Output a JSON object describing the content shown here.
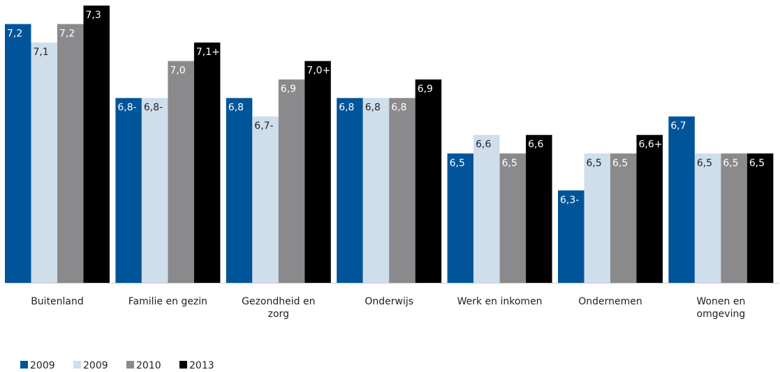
{
  "chart_data": {
    "type": "bar",
    "title": "",
    "xlabel": "",
    "ylabel": "",
    "categories": [
      [
        "Buitenland"
      ],
      [
        "Familie en gezin"
      ],
      [
        "Gezondheid en",
        "zorg"
      ],
      [
        "Onderwijs"
      ],
      [
        "Werk en inkomen"
      ],
      [
        "Ondernemen"
      ],
      [
        "Wonen en",
        "omgeving"
      ]
    ],
    "series": [
      {
        "name": "2009",
        "color": "#00549a",
        "label_color": "#ffffff",
        "values": [
          7.2,
          6.8,
          6.8,
          6.8,
          6.5,
          6.3,
          6.7
        ],
        "labels": [
          "7,2",
          "6,8-",
          "6,8",
          "6,8",
          "6,5",
          "6,3-",
          "6,7"
        ]
      },
      {
        "name": "2009",
        "color": "#cfdeeb",
        "label_color": "#222222",
        "values": [
          7.1,
          6.8,
          6.7,
          6.8,
          6.6,
          6.5,
          6.5
        ],
        "labels": [
          "7,1",
          "6,8-",
          "6,7-",
          "6,8",
          "6,6",
          "6,5",
          "6,5"
        ]
      },
      {
        "name": "2010",
        "color": "#8a8a8c",
        "label_color": "#ffffff",
        "values": [
          7.2,
          7.0,
          6.9,
          6.8,
          6.5,
          6.5,
          6.5
        ],
        "labels": [
          "7,2",
          "7,0",
          "6,9",
          "6,8",
          "6,5",
          "6,5",
          "6,5"
        ]
      },
      {
        "name": "2013",
        "color": "#000000",
        "label_color": "#ffffff",
        "values": [
          7.3,
          7.1,
          7.0,
          6.9,
          6.6,
          6.6,
          6.5
        ],
        "labels": [
          "7,3",
          "7,1+",
          "7,0+",
          "6,9",
          "6,6",
          "6,6+",
          "6,5"
        ]
      }
    ],
    "ylim": [
      5.8,
      7.3
    ],
    "grid": false,
    "legend": "bottom-left"
  }
}
